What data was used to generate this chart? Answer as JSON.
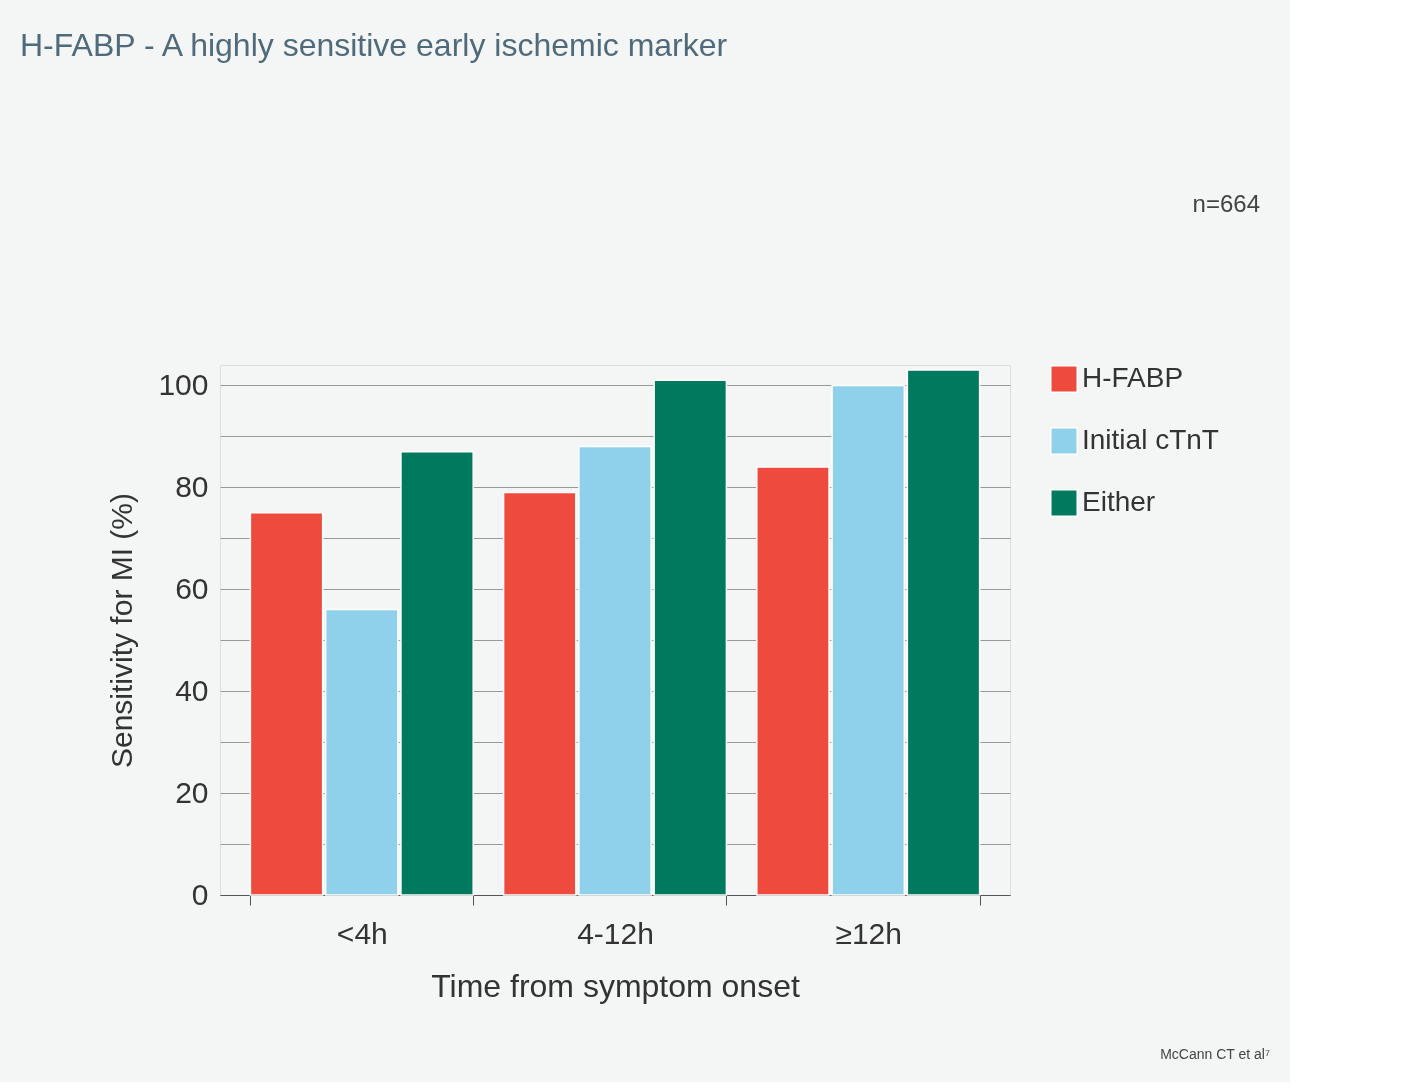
{
  "chart_data": {
    "type": "bar",
    "title": "H-FABP - A highly sensitive early ischemic marker",
    "xlabel": "Time from symptom onset",
    "ylabel": "Sensitivity for MI (%)",
    "categories": [
      "<4h",
      "4-12h",
      "≥12h"
    ],
    "series": [
      {
        "name": "H-FABP",
        "color": "#ee4b3e",
        "values": [
          75,
          79,
          84
        ]
      },
      {
        "name": "Initial cTnT",
        "color": "#8fd0ea",
        "values": [
          56,
          88,
          100
        ]
      },
      {
        "name": "Either",
        "color": "#007a5e",
        "values": [
          87,
          101,
          103
        ]
      }
    ],
    "ylim": [
      0,
      104
    ],
    "yticks": [
      0,
      {
        "value": 10,
        "label": null
      },
      20,
      {
        "value": 30,
        "label": null
      },
      40,
      {
        "value": 50,
        "label": null
      },
      60,
      {
        "value": 70,
        "label": null
      },
      80,
      {
        "value": 90,
        "label": null
      },
      100
    ],
    "grid": "y",
    "legend": "right",
    "annotations": [
      "n=664",
      "McCann CT et al⁷"
    ]
  }
}
